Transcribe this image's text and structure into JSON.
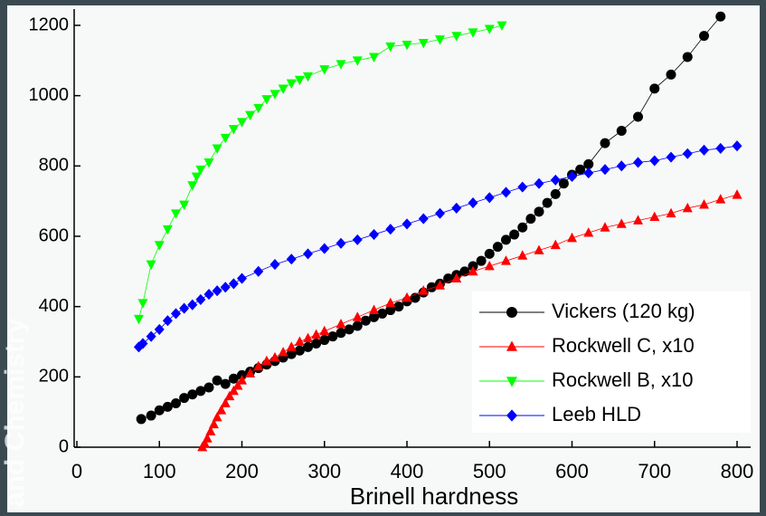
{
  "slide": {
    "side_text": "and Chemistry"
  },
  "chart_data": {
    "type": "scatter",
    "xlabel": "Brinell hardness",
    "xlim": [
      0,
      800
    ],
    "xticks": [
      0,
      100,
      200,
      300,
      400,
      500,
      600,
      700,
      800
    ],
    "ylim": [
      0,
      1200
    ],
    "yticks": [
      0,
      200,
      400,
      600,
      800,
      1000,
      1200
    ],
    "legend": "lower right",
    "series": [
      {
        "name": "Vickers (120 kg)",
        "color": "#000000",
        "marker": "circle",
        "x": [
          78,
          90,
          100,
          110,
          120,
          130,
          140,
          150,
          160,
          170,
          180,
          190,
          200,
          210,
          220,
          230,
          240,
          250,
          260,
          270,
          280,
          290,
          300,
          310,
          320,
          330,
          340,
          350,
          360,
          370,
          380,
          390,
          400,
          410,
          420,
          430,
          440,
          450,
          460,
          470,
          480,
          490,
          500,
          510,
          520,
          530,
          540,
          550,
          560,
          570,
          580,
          590,
          600,
          610,
          620,
          640,
          660,
          680,
          700,
          720,
          740,
          760,
          780
        ],
        "values": [
          80,
          90,
          105,
          115,
          125,
          140,
          150,
          160,
          170,
          190,
          180,
          195,
          205,
          215,
          225,
          235,
          245,
          255,
          265,
          275,
          285,
          295,
          305,
          315,
          325,
          335,
          345,
          360,
          370,
          380,
          390,
          400,
          415,
          425,
          440,
          455,
          465,
          480,
          490,
          500,
          515,
          530,
          550,
          570,
          590,
          605,
          625,
          650,
          670,
          695,
          720,
          750,
          775,
          790,
          805,
          865,
          900,
          940,
          1020,
          1060,
          1110,
          1170,
          1225
        ]
      },
      {
        "name": "Rockwell C, x10",
        "color": "#ff0000",
        "marker": "triangle",
        "x": [
          152,
          155,
          158,
          162,
          166,
          170,
          175,
          180,
          185,
          190,
          195,
          200,
          210,
          220,
          230,
          240,
          250,
          260,
          270,
          280,
          290,
          300,
          320,
          340,
          360,
          380,
          400,
          420,
          440,
          460,
          480,
          500,
          520,
          540,
          560,
          580,
          600,
          620,
          640,
          660,
          680,
          700,
          720,
          740,
          760,
          780,
          800
        ],
        "values": [
          0,
          10,
          25,
          45,
          65,
          85,
          105,
          125,
          145,
          160,
          175,
          190,
          210,
          230,
          245,
          255,
          270,
          285,
          300,
          310,
          320,
          330,
          350,
          370,
          390,
          410,
          425,
          445,
          460,
          480,
          500,
          515,
          530,
          545,
          560,
          575,
          595,
          610,
          625,
          635,
          645,
          655,
          665,
          680,
          690,
          705,
          718
        ]
      },
      {
        "name": "Rockwell B, x10",
        "color": "#00ff00",
        "marker": "triangle-down",
        "x": [
          75,
          80,
          90,
          100,
          110,
          120,
          130,
          140,
          145,
          150,
          160,
          170,
          180,
          190,
          200,
          210,
          220,
          230,
          240,
          250,
          260,
          270,
          280,
          300,
          320,
          340,
          360,
          380,
          400,
          420,
          440,
          460,
          480,
          500,
          515
        ],
        "values": [
          365,
          410,
          520,
          575,
          620,
          665,
          690,
          745,
          770,
          790,
          810,
          850,
          880,
          905,
          925,
          945,
          965,
          990,
          1005,
          1020,
          1035,
          1045,
          1055,
          1075,
          1090,
          1100,
          1110,
          1140,
          1145,
          1150,
          1160,
          1170,
          1180,
          1190,
          1200
        ]
      },
      {
        "name": "Leeb HLD",
        "color": "#0000ff",
        "marker": "diamond",
        "x": [
          75,
          80,
          90,
          100,
          110,
          120,
          130,
          140,
          150,
          160,
          170,
          180,
          190,
          200,
          220,
          240,
          260,
          280,
          300,
          320,
          340,
          360,
          380,
          400,
          420,
          440,
          460,
          480,
          500,
          520,
          540,
          560,
          580,
          600,
          620,
          640,
          660,
          680,
          700,
          720,
          740,
          760,
          780,
          800
        ],
        "values": [
          285,
          295,
          315,
          335,
          360,
          380,
          395,
          405,
          420,
          435,
          445,
          455,
          465,
          480,
          500,
          520,
          535,
          550,
          565,
          580,
          590,
          605,
          620,
          635,
          650,
          665,
          680,
          695,
          710,
          725,
          740,
          750,
          760,
          770,
          780,
          790,
          800,
          810,
          815,
          825,
          835,
          845,
          850,
          857
        ]
      }
    ]
  }
}
